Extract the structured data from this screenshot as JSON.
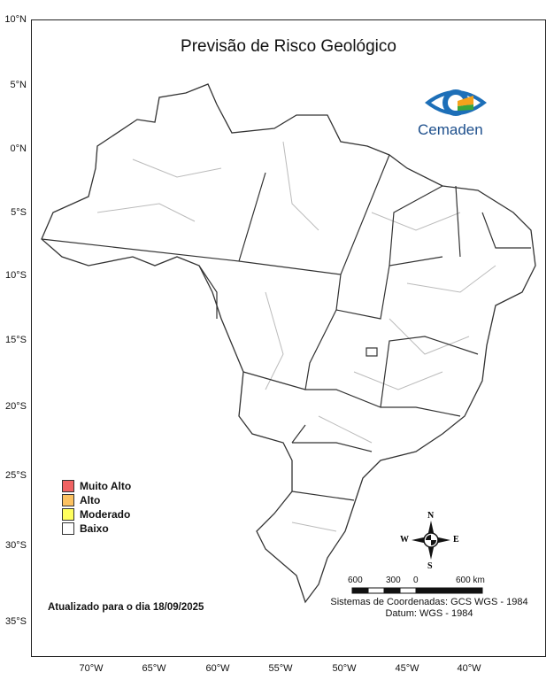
{
  "title": "Previsão de Risco Geológico",
  "logo": {
    "text": "Cemaden",
    "colors": {
      "blue": "#1d6fb8",
      "green": "#3aa63a",
      "orange": "#f5a21c"
    }
  },
  "latitude_ticks": [
    "10°N",
    "5°N",
    "0°N",
    "5°S",
    "10°S",
    "15°S",
    "20°S",
    "25°S",
    "30°S",
    "35°S"
  ],
  "longitude_ticks": [
    "70°W",
    "65°W",
    "60°W",
    "55°W",
    "50°W",
    "45°W",
    "40°W"
  ],
  "legend": [
    {
      "label": "Muito Alto",
      "color": "#f06262"
    },
    {
      "label": "Alto",
      "color": "#fcc261"
    },
    {
      "label": "Moderado",
      "color": "#ffff5e"
    },
    {
      "label": "Baixo",
      "color": "#ffffff"
    }
  ],
  "updated": "Atualizado para o dia 18/09/2025",
  "compass": {
    "n": "N",
    "s": "S",
    "e": "E",
    "w": "W"
  },
  "scale": {
    "labels": [
      "600",
      "300",
      "0",
      "600 km"
    ]
  },
  "coordinate_system": "Sistemas de Coordenadas: GCS WGS - 1984",
  "datum": "Datum: WGS - 1984"
}
